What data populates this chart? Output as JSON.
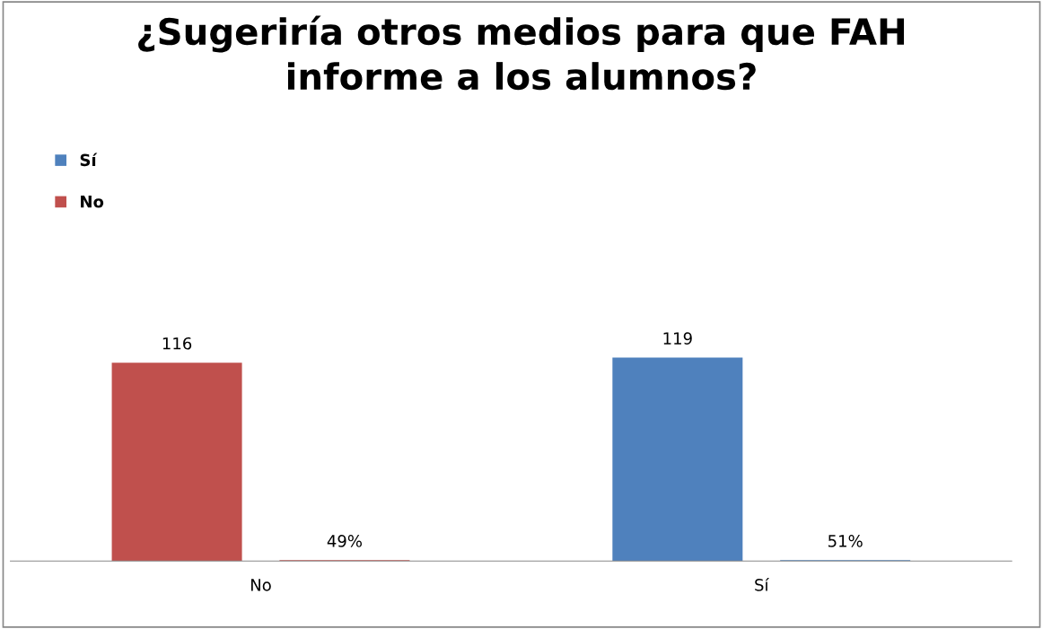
{
  "chart_data": {
    "type": "bar",
    "title": "¿Sugeriría otros medios para que FAH\ninforme a los alumnos?",
    "categories": [
      "No",
      "Sí"
    ],
    "series": [
      {
        "name": "Sí",
        "color": "#4f81bd",
        "values": [
          null,
          119
        ],
        "value_labels": [
          null,
          "119"
        ]
      },
      {
        "name": "No",
        "color": "#c0504d",
        "values": [
          116,
          null
        ],
        "value_labels": [
          "116",
          null
        ]
      },
      {
        "colors": [
          "#c0504d",
          "#4f81bd"
        ],
        "values": [
          0.49,
          0.51
        ],
        "value_labels": [
          "49%",
          "51%"
        ]
      }
    ],
    "legend": "top left",
    "grid": false
  }
}
